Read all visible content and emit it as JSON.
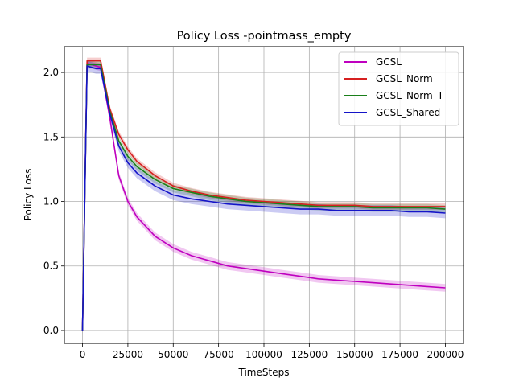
{
  "chart_data": {
    "type": "line",
    "title": "Policy Loss -pointmass_empty",
    "xlabel": "TimeSteps",
    "ylabel": "Policy Loss",
    "xlim": [
      -10000,
      210000
    ],
    "ylim": [
      -0.1,
      2.2
    ],
    "xticks": [
      0,
      25000,
      50000,
      75000,
      100000,
      125000,
      150000,
      175000,
      200000
    ],
    "xtick_labels": [
      "0",
      "25000",
      "50000",
      "75000",
      "100000",
      "125000",
      "150000",
      "175000",
      "200000"
    ],
    "yticks": [
      0.0,
      0.5,
      1.0,
      1.5,
      2.0
    ],
    "ytick_labels": [
      "0.0",
      "0.5",
      "1.0",
      "1.5",
      "2.0"
    ],
    "grid": true,
    "legend_position": "top-right",
    "x": [
      0,
      2500,
      5000,
      7500,
      10000,
      15000,
      20000,
      25000,
      30000,
      40000,
      50000,
      60000,
      70000,
      80000,
      90000,
      100000,
      110000,
      120000,
      130000,
      140000,
      150000,
      160000,
      170000,
      180000,
      190000,
      200000
    ],
    "series": [
      {
        "name": "GCSL",
        "color": "#bf00bf",
        "values": [
          0.0,
          2.07,
          2.06,
          2.05,
          2.04,
          1.65,
          1.2,
          1.0,
          0.88,
          0.73,
          0.64,
          0.58,
          0.54,
          0.5,
          0.48,
          0.46,
          0.44,
          0.42,
          0.4,
          0.39,
          0.38,
          0.37,
          0.36,
          0.35,
          0.34,
          0.33
        ],
        "band": 0.03
      },
      {
        "name": "GCSL_Norm",
        "color": "#d62020",
        "values": [
          0.0,
          2.09,
          2.09,
          2.09,
          2.09,
          1.72,
          1.52,
          1.4,
          1.31,
          1.2,
          1.12,
          1.08,
          1.05,
          1.03,
          1.01,
          1.0,
          0.99,
          0.98,
          0.97,
          0.97,
          0.97,
          0.96,
          0.96,
          0.96,
          0.96,
          0.96
        ],
        "band": 0.025
      },
      {
        "name": "GCSL_Norm_T",
        "color": "#1a7f1a",
        "values": [
          0.0,
          2.06,
          2.06,
          2.06,
          2.06,
          1.7,
          1.47,
          1.35,
          1.27,
          1.17,
          1.1,
          1.07,
          1.04,
          1.02,
          1.0,
          0.99,
          0.98,
          0.97,
          0.96,
          0.96,
          0.96,
          0.95,
          0.95,
          0.95,
          0.95,
          0.94
        ],
        "band": 0.03
      },
      {
        "name": "GCSL_Shared",
        "color": "#1414c8",
        "values": [
          0.0,
          2.05,
          2.04,
          2.03,
          2.03,
          1.68,
          1.43,
          1.3,
          1.22,
          1.12,
          1.05,
          1.02,
          1.0,
          0.98,
          0.97,
          0.96,
          0.95,
          0.94,
          0.94,
          0.93,
          0.93,
          0.93,
          0.93,
          0.92,
          0.92,
          0.91
        ],
        "band": 0.04
      }
    ]
  }
}
